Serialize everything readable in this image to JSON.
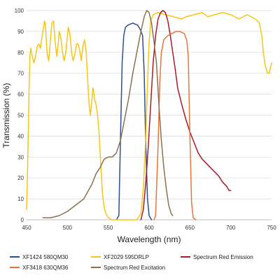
{
  "chart_data": {
    "type": "line",
    "title": "",
    "xlabel": "Wavelength (nm)",
    "ylabel": "Transmission (%)",
    "xlim": [
      450,
      750
    ],
    "ylim": [
      0,
      100
    ],
    "xticks": [
      450,
      500,
      550,
      600,
      650,
      700,
      750
    ],
    "yticks": [
      0,
      10,
      20,
      30,
      40,
      50,
      60,
      70,
      80,
      90,
      100
    ],
    "grid": "horizontal",
    "legend_position": "bottom",
    "series": [
      {
        "name": "XF1424 580QM30",
        "color": "#2e4f8f",
        "points": [
          [
            560,
            0
          ],
          [
            563,
            2
          ],
          [
            565,
            40
          ],
          [
            567,
            75
          ],
          [
            569,
            88
          ],
          [
            571,
            92
          ],
          [
            574,
            93
          ],
          [
            580,
            94
          ],
          [
            586,
            93
          ],
          [
            589,
            91
          ],
          [
            592,
            88
          ],
          [
            594,
            70
          ],
          [
            596,
            35
          ],
          [
            598,
            10
          ],
          [
            600,
            2
          ],
          [
            603,
            0
          ]
        ]
      },
      {
        "name": "XF2029 595DRLP",
        "color": "#f5c518",
        "points": [
          [
            450,
            5
          ],
          [
            451,
            20
          ],
          [
            452,
            40
          ],
          [
            453,
            62
          ],
          [
            454,
            78
          ],
          [
            455,
            82
          ],
          [
            457,
            78
          ],
          [
            459,
            75
          ],
          [
            461,
            78
          ],
          [
            463,
            83
          ],
          [
            465,
            84
          ],
          [
            467,
            82
          ],
          [
            468,
            85
          ],
          [
            470,
            90
          ],
          [
            472,
            95
          ],
          [
            473,
            93
          ],
          [
            475,
            80
          ],
          [
            477,
            76
          ],
          [
            478,
            80
          ],
          [
            480,
            90
          ],
          [
            481,
            94
          ],
          [
            483,
            95
          ],
          [
            485,
            85
          ],
          [
            487,
            78
          ],
          [
            489,
            85
          ],
          [
            490,
            90
          ],
          [
            492,
            87
          ],
          [
            494,
            80
          ],
          [
            496,
            76
          ],
          [
            498,
            80
          ],
          [
            500,
            88
          ],
          [
            501,
            92
          ],
          [
            503,
            89
          ],
          [
            505,
            80
          ],
          [
            507,
            76
          ],
          [
            509,
            79
          ],
          [
            511,
            84
          ],
          [
            513,
            84
          ],
          [
            515,
            81
          ],
          [
            517,
            76
          ],
          [
            519,
            83
          ],
          [
            521,
            86
          ],
          [
            523,
            80
          ],
          [
            525,
            65
          ],
          [
            527,
            53
          ],
          [
            528,
            50
          ],
          [
            530,
            57
          ],
          [
            531,
            63
          ],
          [
            532,
            62
          ],
          [
            533,
            58
          ],
          [
            535,
            55
          ],
          [
            537,
            50
          ],
          [
            539,
            40
          ],
          [
            541,
            25
          ],
          [
            543,
            12
          ],
          [
            545,
            6
          ],
          [
            547,
            3
          ],
          [
            550,
            1
          ],
          [
            555,
            0
          ],
          [
            570,
            0
          ],
          [
            585,
            0
          ],
          [
            590,
            3
          ],
          [
            593,
            15
          ],
          [
            596,
            40
          ],
          [
            598,
            65
          ],
          [
            600,
            85
          ],
          [
            602,
            95
          ],
          [
            605,
            98
          ],
          [
            610,
            99
          ],
          [
            620,
            98
          ],
          [
            630,
            97
          ],
          [
            640,
            96
          ],
          [
            645,
            97
          ],
          [
            655,
            98
          ],
          [
            665,
            99
          ],
          [
            672,
            97
          ],
          [
            680,
            98
          ],
          [
            690,
            99
          ],
          [
            700,
            98
          ],
          [
            710,
            96
          ],
          [
            720,
            98
          ],
          [
            730,
            96
          ],
          [
            735,
            94
          ],
          [
            738,
            88
          ],
          [
            740,
            80
          ],
          [
            742,
            74
          ],
          [
            745,
            70
          ],
          [
            747,
            70
          ],
          [
            750,
            75
          ]
        ]
      },
      {
        "name": "Spectrum Red Emission",
        "color": "#a61c28",
        "points": [
          [
            590,
            0
          ],
          [
            593,
            5
          ],
          [
            596,
            18
          ],
          [
            599,
            35
          ],
          [
            602,
            55
          ],
          [
            605,
            75
          ],
          [
            608,
            88
          ],
          [
            611,
            96
          ],
          [
            614,
            99
          ],
          [
            617,
            100
          ],
          [
            620,
            99
          ],
          [
            623,
            95
          ],
          [
            626,
            88
          ],
          [
            629,
            80
          ],
          [
            632,
            72
          ],
          [
            635,
            63
          ],
          [
            640,
            55
          ],
          [
            645,
            48
          ],
          [
            650,
            42
          ],
          [
            655,
            37
          ],
          [
            660,
            32
          ],
          [
            665,
            29
          ],
          [
            670,
            27
          ],
          [
            675,
            25
          ],
          [
            680,
            23
          ],
          [
            685,
            21
          ],
          [
            690,
            18
          ],
          [
            695,
            16
          ],
          [
            698,
            14
          ],
          [
            700,
            14
          ]
        ]
      },
      {
        "name": "XF3418 630QM36",
        "color": "#e8743b",
        "points": [
          [
            606,
            0
          ],
          [
            608,
            2
          ],
          [
            611,
            35
          ],
          [
            613,
            65
          ],
          [
            615,
            80
          ],
          [
            618,
            86
          ],
          [
            623,
            88
          ],
          [
            628,
            89
          ],
          [
            633,
            90
          ],
          [
            638,
            90
          ],
          [
            643,
            89
          ],
          [
            646,
            86
          ],
          [
            648,
            78
          ],
          [
            650,
            40
          ],
          [
            652,
            8
          ],
          [
            654,
            1
          ],
          [
            657,
            0
          ]
        ]
      },
      {
        "name": "Spectrum Red Excitation",
        "color": "#8c7150",
        "points": [
          [
            470,
            1
          ],
          [
            480,
            1
          ],
          [
            490,
            2
          ],
          [
            500,
            4
          ],
          [
            510,
            7
          ],
          [
            520,
            10
          ],
          [
            530,
            17
          ],
          [
            535,
            22
          ],
          [
            540,
            25
          ],
          [
            545,
            29
          ],
          [
            550,
            30
          ],
          [
            555,
            30
          ],
          [
            560,
            32
          ],
          [
            565,
            38
          ],
          [
            570,
            48
          ],
          [
            575,
            58
          ],
          [
            580,
            70
          ],
          [
            585,
            80
          ],
          [
            590,
            90
          ],
          [
            594,
            97
          ],
          [
            597,
            100
          ],
          [
            600,
            99
          ],
          [
            603,
            94
          ],
          [
            606,
            85
          ],
          [
            609,
            75
          ],
          [
            612,
            55
          ],
          [
            615,
            38
          ],
          [
            618,
            25
          ],
          [
            621,
            15
          ],
          [
            624,
            7
          ],
          [
            627,
            3
          ],
          [
            629,
            2
          ]
        ]
      }
    ]
  }
}
